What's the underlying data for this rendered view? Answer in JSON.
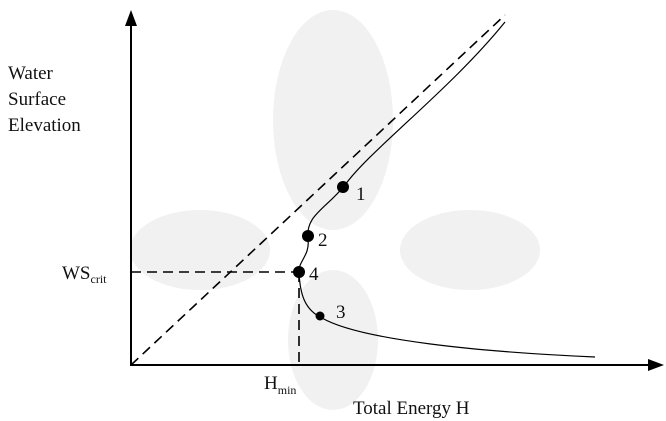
{
  "axes": {
    "y_label_lines": [
      "Water",
      "Surface",
      "Elevation"
    ],
    "x_label": "Total Energy H"
  },
  "critical": {
    "ws_main": "WS",
    "ws_sub": "crit",
    "h_main": "H",
    "h_sub": "min"
  },
  "points": [
    {
      "label": "1"
    },
    {
      "label": "2"
    },
    {
      "label": "4"
    },
    {
      "label": "3"
    }
  ]
}
